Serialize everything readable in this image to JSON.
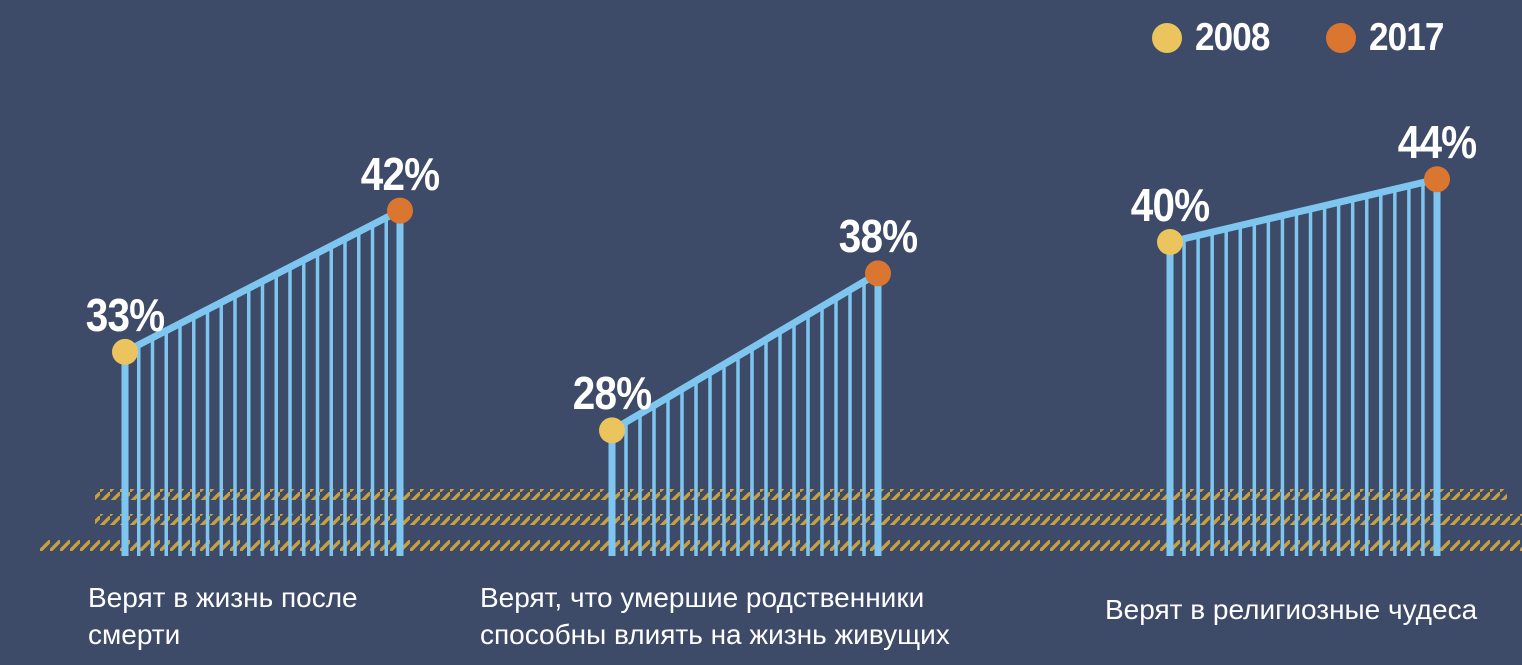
{
  "chart_data": {
    "type": "area",
    "categories": [
      "Верят в жизнь после смерти",
      "Верят, что умершие родственники способны влиять на жизнь живущих",
      "Верят в религиозные чудеса"
    ],
    "series": [
      {
        "name": "2008",
        "values": [
          33,
          28,
          40
        ]
      },
      {
        "name": "2017",
        "values": [
          42,
          38,
          44
        ]
      }
    ],
    "unit": "%",
    "legend_position": "top-right",
    "grid": false
  },
  "colors": {
    "background": "#3d4a68",
    "fence_blue": "#7ec6ef",
    "dot_2008": "#ecc45d",
    "dot_2017": "#db7631",
    "hatch": "#c8a13d",
    "text": "#ffffff"
  }
}
